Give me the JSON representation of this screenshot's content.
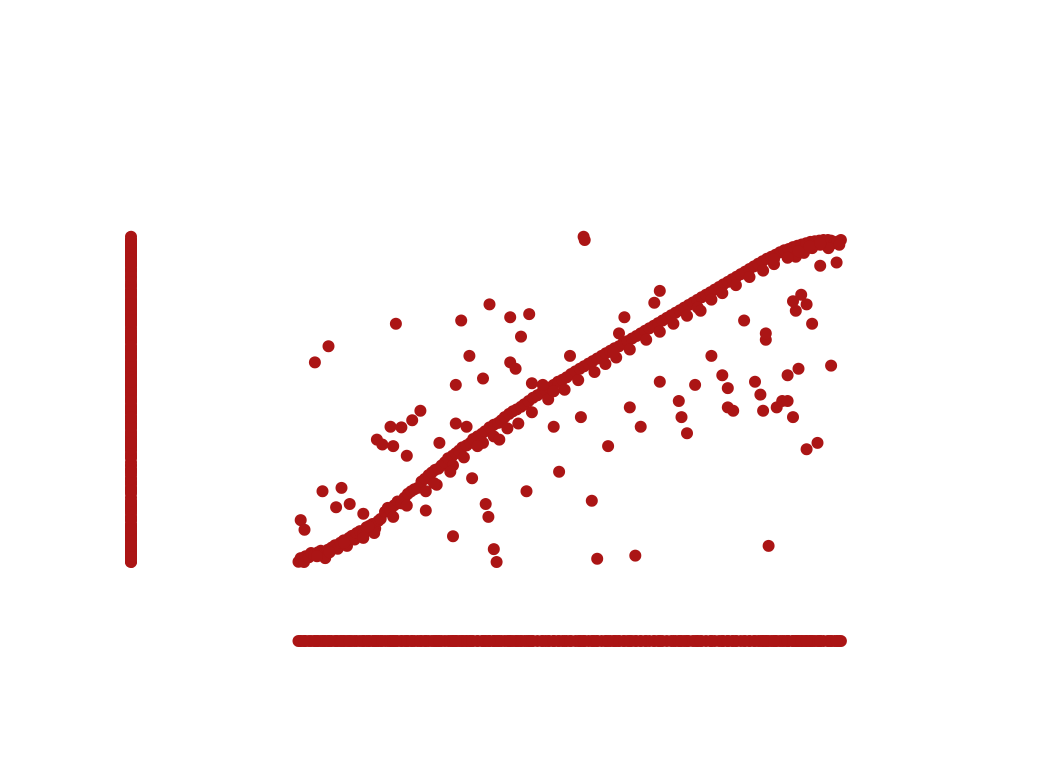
{
  "chart_data": {
    "type": "scatter",
    "title": "",
    "xlabel": "",
    "ylabel": "",
    "marginal_rugs": true,
    "grid": false,
    "legend": "none",
    "xlim": [
      0,
      1
    ],
    "ylim": [
      0,
      1
    ],
    "color": "#ab1515",
    "points": [
      [
        0.001,
        0.001
      ],
      [
        0.005,
        0.012
      ],
      [
        0.011,
        0.0
      ],
      [
        0.014,
        0.018
      ],
      [
        0.02,
        0.015
      ],
      [
        0.024,
        0.028
      ],
      [
        0.03,
        0.022
      ],
      [
        0.037,
        0.03
      ],
      [
        0.042,
        0.035
      ],
      [
        0.048,
        0.026
      ],
      [
        0.05,
        0.012
      ],
      [
        0.055,
        0.038
      ],
      [
        0.062,
        0.045
      ],
      [
        0.068,
        0.052
      ],
      [
        0.073,
        0.041
      ],
      [
        0.078,
        0.06
      ],
      [
        0.084,
        0.067
      ],
      [
        0.09,
        0.05
      ],
      [
        0.094,
        0.075
      ],
      [
        0.099,
        0.081
      ],
      [
        0.104,
        0.07
      ],
      [
        0.108,
        0.09
      ],
      [
        0.114,
        0.096
      ],
      [
        0.12,
        0.087
      ],
      [
        0.126,
        0.108
      ],
      [
        0.131,
        0.112
      ],
      [
        0.137,
        0.118
      ],
      [
        0.142,
        0.104
      ],
      [
        0.148,
        0.128
      ],
      [
        0.152,
        0.134
      ],
      [
        0.16,
        0.156
      ],
      [
        0.165,
        0.168
      ],
      [
        0.17,
        0.162
      ],
      [
        0.177,
        0.176
      ],
      [
        0.183,
        0.188
      ],
      [
        0.19,
        0.182
      ],
      [
        0.196,
        0.2
      ],
      [
        0.202,
        0.212
      ],
      [
        0.208,
        0.22
      ],
      [
        0.214,
        0.226
      ],
      [
        0.22,
        0.23
      ],
      [
        0.227,
        0.25
      ],
      [
        0.233,
        0.258
      ],
      [
        0.24,
        0.27
      ],
      [
        0.246,
        0.278
      ],
      [
        0.252,
        0.286
      ],
      [
        0.258,
        0.29
      ],
      [
        0.264,
        0.3
      ],
      [
        0.27,
        0.31
      ],
      [
        0.276,
        0.322
      ],
      [
        0.284,
        0.33
      ],
      [
        0.29,
        0.338
      ],
      [
        0.296,
        0.346
      ],
      [
        0.302,
        0.356
      ],
      [
        0.31,
        0.362
      ],
      [
        0.317,
        0.37
      ],
      [
        0.322,
        0.382
      ],
      [
        0.33,
        0.39
      ],
      [
        0.338,
        0.398
      ],
      [
        0.344,
        0.406
      ],
      [
        0.352,
        0.418
      ],
      [
        0.36,
        0.426
      ],
      [
        0.368,
        0.432
      ],
      [
        0.374,
        0.44
      ],
      [
        0.38,
        0.45
      ],
      [
        0.388,
        0.46
      ],
      [
        0.395,
        0.468
      ],
      [
        0.402,
        0.474
      ],
      [
        0.41,
        0.482
      ],
      [
        0.416,
        0.49
      ],
      [
        0.424,
        0.5
      ],
      [
        0.432,
        0.51
      ],
      [
        0.44,
        0.518
      ],
      [
        0.448,
        0.526
      ],
      [
        0.455,
        0.534
      ],
      [
        0.462,
        0.542
      ],
      [
        0.47,
        0.55
      ],
      [
        0.478,
        0.56
      ],
      [
        0.486,
        0.566
      ],
      [
        0.494,
        0.574
      ],
      [
        0.502,
        0.584
      ],
      [
        0.51,
        0.592
      ],
      [
        0.518,
        0.6
      ],
      [
        0.526,
        0.608
      ],
      [
        0.534,
        0.616
      ],
      [
        0.542,
        0.624
      ],
      [
        0.55,
        0.632
      ],
      [
        0.558,
        0.64
      ],
      [
        0.566,
        0.648
      ],
      [
        0.574,
        0.656
      ],
      [
        0.582,
        0.664
      ],
      [
        0.59,
        0.67
      ],
      [
        0.598,
        0.68
      ],
      [
        0.606,
        0.686
      ],
      [
        0.614,
        0.694
      ],
      [
        0.622,
        0.702
      ],
      [
        0.63,
        0.71
      ],
      [
        0.638,
        0.718
      ],
      [
        0.646,
        0.726
      ],
      [
        0.654,
        0.734
      ],
      [
        0.662,
        0.742
      ],
      [
        0.67,
        0.75
      ],
      [
        0.678,
        0.758
      ],
      [
        0.686,
        0.766
      ],
      [
        0.694,
        0.774
      ],
      [
        0.702,
        0.782
      ],
      [
        0.71,
        0.79
      ],
      [
        0.718,
        0.798
      ],
      [
        0.726,
        0.806
      ],
      [
        0.734,
        0.814
      ],
      [
        0.742,
        0.822
      ],
      [
        0.75,
        0.83
      ],
      [
        0.758,
        0.838
      ],
      [
        0.766,
        0.846
      ],
      [
        0.774,
        0.854
      ],
      [
        0.782,
        0.862
      ],
      [
        0.79,
        0.87
      ],
      [
        0.798,
        0.878
      ],
      [
        0.806,
        0.886
      ],
      [
        0.814,
        0.894
      ],
      [
        0.822,
        0.902
      ],
      [
        0.83,
        0.91
      ],
      [
        0.838,
        0.918
      ],
      [
        0.846,
        0.926
      ],
      [
        0.854,
        0.934
      ],
      [
        0.862,
        0.942
      ],
      [
        0.87,
        0.948
      ],
      [
        0.878,
        0.954
      ],
      [
        0.886,
        0.962
      ],
      [
        0.894,
        0.968
      ],
      [
        0.902,
        0.972
      ],
      [
        0.91,
        0.978
      ],
      [
        0.918,
        0.982
      ],
      [
        0.926,
        0.986
      ],
      [
        0.934,
        0.99
      ],
      [
        0.942,
        0.994
      ],
      [
        0.95,
        0.996
      ],
      [
        0.958,
        0.998
      ],
      [
        0.966,
        1.0
      ],
      [
        0.974,
        1.0
      ],
      [
        0.98,
        0.998
      ],
      [
        0.986,
        0.99
      ],
      [
        0.992,
        0.995
      ],
      [
        0.998,
        1.0
      ],
      [
        0.995,
        0.985
      ],
      [
        0.975,
        0.975
      ],
      [
        0.96,
        0.985
      ],
      [
        0.945,
        0.975
      ],
      [
        0.93,
        0.96
      ],
      [
        0.915,
        0.948
      ],
      [
        0.035,
        0.018
      ],
      [
        0.058,
        0.03
      ],
      [
        0.085,
        0.06
      ],
      [
        0.12,
        0.075
      ],
      [
        0.14,
        0.09
      ],
      [
        0.175,
        0.14
      ],
      [
        0.2,
        0.175
      ],
      [
        0.235,
        0.22
      ],
      [
        0.255,
        0.24
      ],
      [
        0.285,
        0.3
      ],
      [
        0.305,
        0.325
      ],
      [
        0.34,
        0.37
      ],
      [
        0.36,
        0.39
      ],
      [
        0.385,
        0.415
      ],
      [
        0.405,
        0.43
      ],
      [
        0.43,
        0.465
      ],
      [
        0.46,
        0.505
      ],
      [
        0.49,
        0.535
      ],
      [
        0.515,
        0.565
      ],
      [
        0.545,
        0.59
      ],
      [
        0.565,
        0.615
      ],
      [
        0.585,
        0.635
      ],
      [
        0.61,
        0.66
      ],
      [
        0.64,
        0.69
      ],
      [
        0.665,
        0.715
      ],
      [
        0.69,
        0.74
      ],
      [
        0.715,
        0.765
      ],
      [
        0.735,
        0.79
      ],
      [
        0.76,
        0.815
      ],
      [
        0.78,
        0.835
      ],
      [
        0.805,
        0.86
      ],
      [
        0.83,
        0.885
      ],
      [
        0.855,
        0.905
      ],
      [
        0.875,
        0.925
      ],
      [
        0.9,
        0.945
      ],
      [
        0.92,
        0.965
      ],
      [
        0.94,
        0.98
      ],
      [
        0.96,
        0.99
      ],
      [
        0.045,
        0.22
      ],
      [
        0.07,
        0.17
      ],
      [
        0.08,
        0.23
      ],
      [
        0.095,
        0.18
      ],
      [
        0.12,
        0.15
      ],
      [
        0.13,
        0.11
      ],
      [
        0.145,
        0.38
      ],
      [
        0.155,
        0.365
      ],
      [
        0.17,
        0.42
      ],
      [
        0.175,
        0.36
      ],
      [
        0.19,
        0.418
      ],
      [
        0.2,
        0.33
      ],
      [
        0.21,
        0.44
      ],
      [
        0.225,
        0.47
      ],
      [
        0.235,
        0.16
      ],
      [
        0.25,
        0.245
      ],
      [
        0.26,
        0.37
      ],
      [
        0.28,
        0.28
      ],
      [
        0.285,
        0.08
      ],
      [
        0.29,
        0.43
      ],
      [
        0.3,
        0.75
      ],
      [
        0.31,
        0.42
      ],
      [
        0.315,
        0.64
      ],
      [
        0.32,
        0.26
      ],
      [
        0.33,
        0.36
      ],
      [
        0.34,
        0.57
      ],
      [
        0.345,
        0.18
      ],
      [
        0.35,
        0.14
      ],
      [
        0.36,
        0.04
      ],
      [
        0.365,
        0.0
      ],
      [
        0.37,
        0.38
      ],
      [
        0.39,
        0.62
      ],
      [
        0.4,
        0.6
      ],
      [
        0.41,
        0.7
      ],
      [
        0.425,
        0.77
      ],
      [
        0.42,
        0.22
      ],
      [
        0.45,
        0.55
      ],
      [
        0.47,
        0.53
      ],
      [
        0.48,
        0.28
      ],
      [
        0.5,
        0.64
      ],
      [
        0.52,
        0.45
      ],
      [
        0.54,
        0.19
      ],
      [
        0.55,
        0.01
      ],
      [
        0.57,
        0.36
      ],
      [
        0.58,
        0.65
      ],
      [
        0.59,
        0.71
      ],
      [
        0.6,
        0.76
      ],
      [
        0.61,
        0.48
      ],
      [
        0.62,
        0.02
      ],
      [
        0.63,
        0.42
      ],
      [
        0.655,
        0.805
      ],
      [
        0.665,
        0.842
      ],
      [
        0.7,
        0.5
      ],
      [
        0.715,
        0.4
      ],
      [
        0.73,
        0.55
      ],
      [
        0.78,
        0.58
      ],
      [
        0.79,
        0.48
      ],
      [
        0.8,
        0.47
      ],
      [
        0.85,
        0.52
      ],
      [
        0.855,
        0.47
      ],
      [
        0.86,
        0.69
      ],
      [
        0.865,
        0.05
      ],
      [
        0.88,
        0.48
      ],
      [
        0.89,
        0.5
      ],
      [
        0.9,
        0.5
      ],
      [
        0.9,
        0.58
      ],
      [
        0.91,
        0.45
      ],
      [
        0.915,
        0.78
      ],
      [
        0.92,
        0.6
      ],
      [
        0.935,
        0.35
      ],
      [
        0.945,
        0.74
      ],
      [
        0.955,
        0.37
      ],
      [
        0.98,
        0.61
      ],
      [
        0.005,
        0.13
      ],
      [
        0.012,
        0.1
      ],
      [
        0.031,
        0.62
      ],
      [
        0.056,
        0.67
      ],
      [
        0.18,
        0.74
      ],
      [
        0.29,
        0.55
      ],
      [
        0.352,
        0.8
      ],
      [
        0.39,
        0.76
      ],
      [
        0.43,
        0.555
      ],
      [
        0.47,
        0.42
      ],
      [
        0.525,
        1.01
      ],
      [
        0.527,
        1.0
      ],
      [
        0.665,
        0.56
      ],
      [
        0.705,
        0.45
      ],
      [
        0.74,
        0.78
      ],
      [
        0.76,
        0.64
      ],
      [
        0.79,
        0.54
      ],
      [
        0.82,
        0.75
      ],
      [
        0.84,
        0.56
      ],
      [
        0.86,
        0.71
      ],
      [
        0.875,
        0.94
      ],
      [
        0.91,
        0.81
      ],
      [
        0.925,
        0.83
      ],
      [
        0.935,
        0.8
      ],
      [
        0.96,
        0.92
      ],
      [
        0.99,
        0.93
      ]
    ]
  }
}
